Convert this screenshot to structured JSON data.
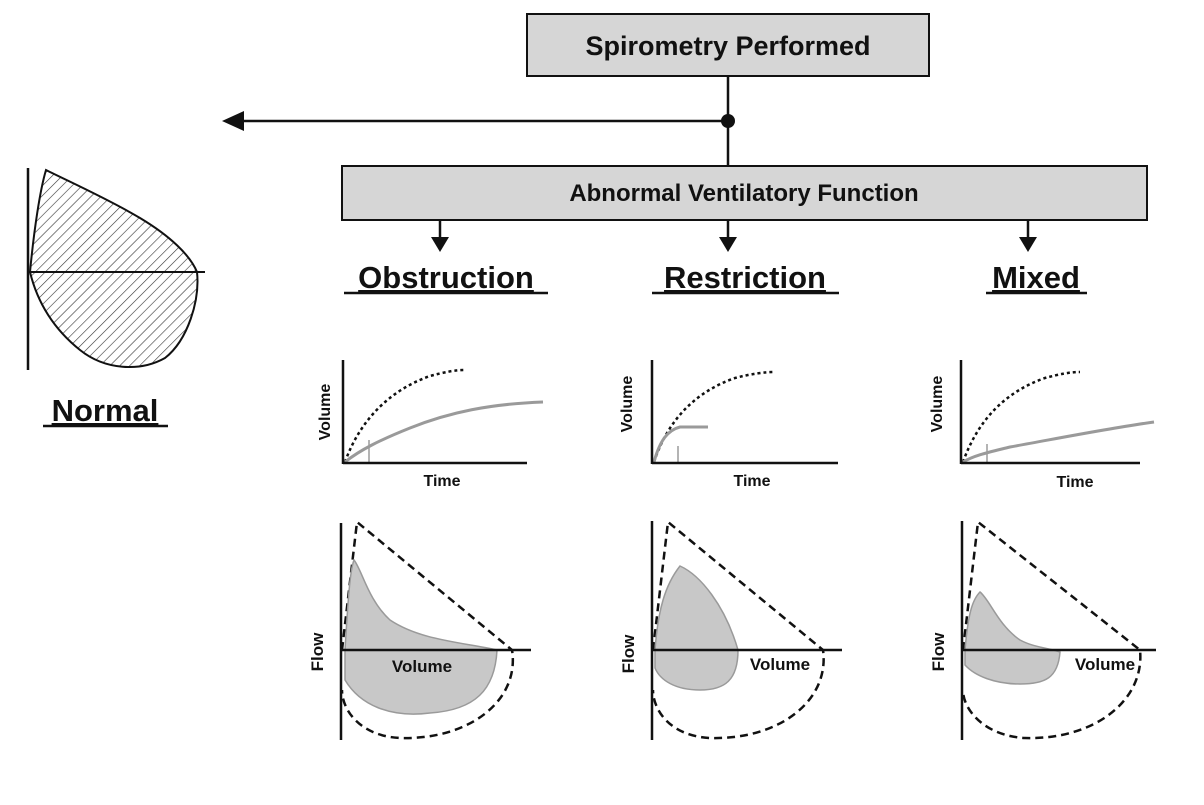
{
  "top_box": {
    "label": "Spirometry Performed"
  },
  "middle_box": {
    "label": "Abnormal Ventilatory Function"
  },
  "normal": {
    "label": "Normal"
  },
  "columns": [
    {
      "heading": "Obstruction",
      "spiro_xlabel": "Time",
      "spiro_ylabel": "Volume",
      "loop_xlabel": "Volume",
      "loop_ylabel": "Flow"
    },
    {
      "heading": "Restriction",
      "spiro_xlabel": "Time",
      "spiro_ylabel": "Volume",
      "loop_xlabel": "Volume",
      "loop_ylabel": "Flow"
    },
    {
      "heading": "Mixed",
      "spiro_xlabel": "Time",
      "spiro_ylabel": "Volume",
      "loop_xlabel": "Volume",
      "loop_ylabel": "Flow"
    }
  ],
  "colors": {
    "box_fill": "#d6d6d6",
    "curve_fill": "#c8c8c8",
    "line": "#111111",
    "curve_gray": "#9a9a9a"
  }
}
